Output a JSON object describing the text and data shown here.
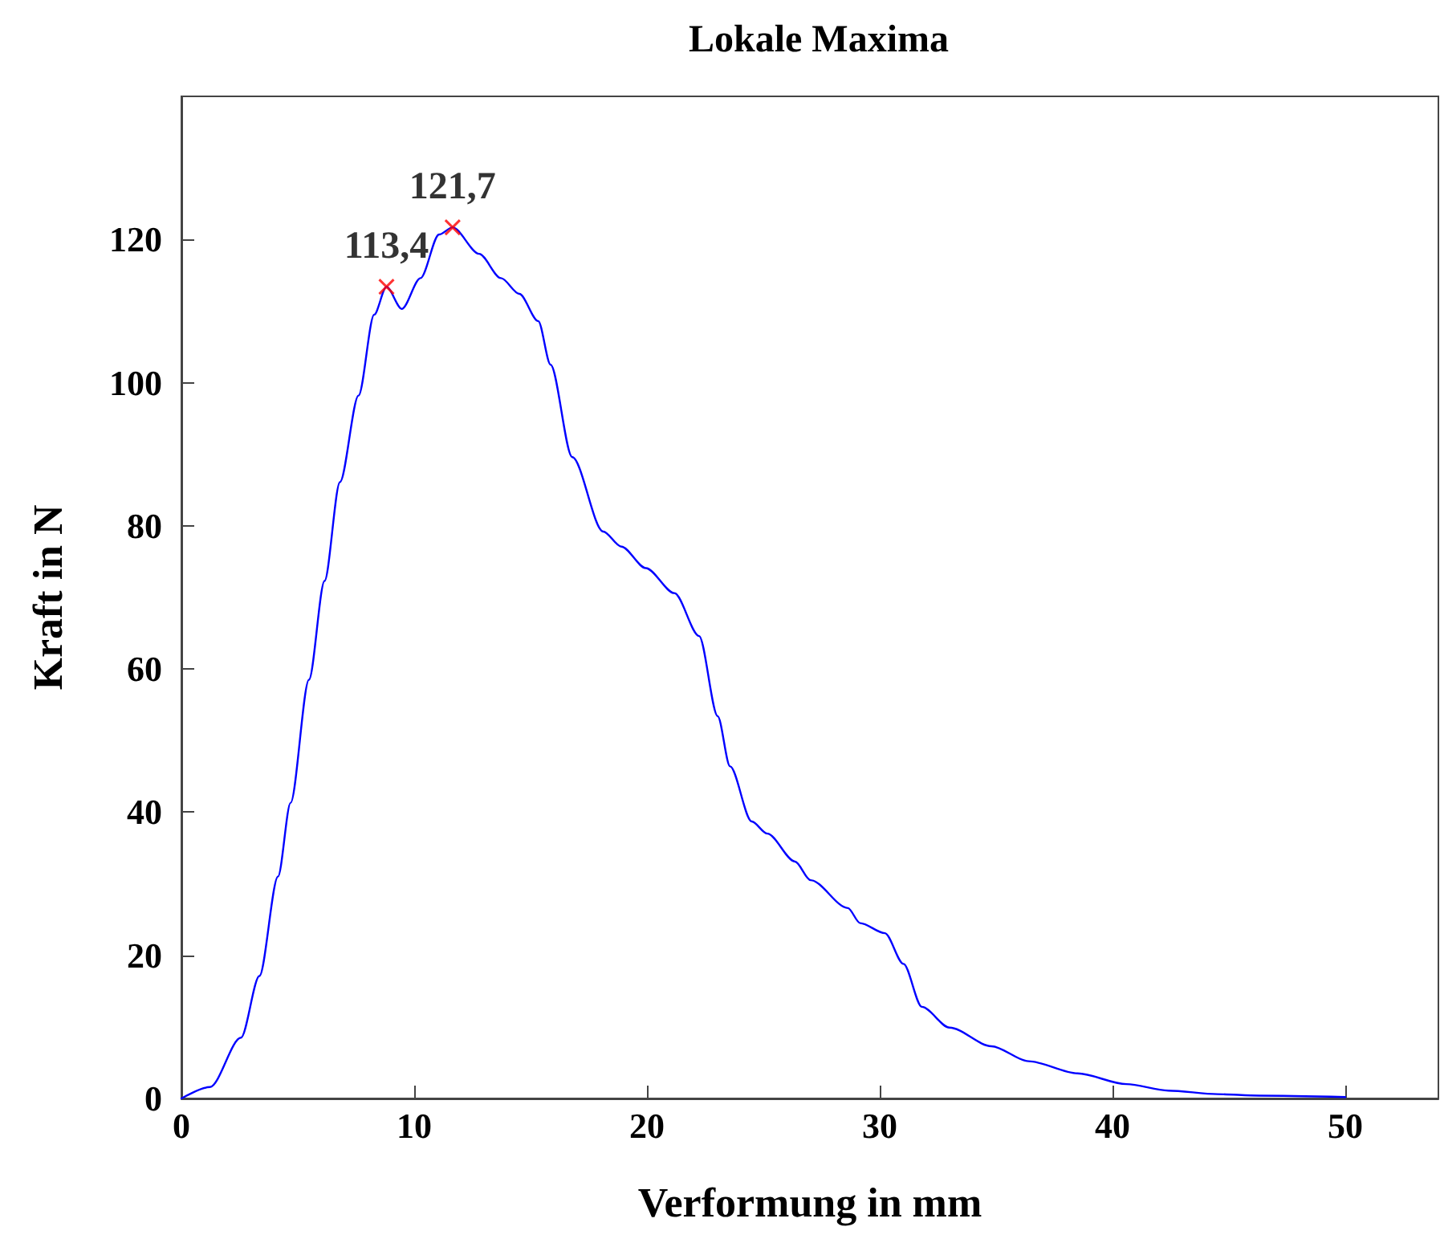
{
  "chart_data": {
    "type": "line",
    "title": "Lokale Maxima",
    "xlabel": "Verformung in mm",
    "ylabel": "Kraft in N",
    "xlim": [
      0,
      54
    ],
    "xticks": [
      0,
      10,
      20,
      30,
      40,
      50
    ],
    "ylim": [
      0,
      140
    ],
    "yticks": [
      0,
      20,
      40,
      60,
      80,
      100,
      120
    ],
    "grid": false,
    "marker": "none",
    "line_style": "solid",
    "series": [
      {
        "color": "#0000ff",
        "x": [
          0,
          1.23,
          2.56,
          3.35,
          4.15,
          4.69,
          5.48,
          6.15,
          6.81,
          7.61,
          8.28,
          8.81,
          9.47,
          10.27,
          11.07,
          11.65,
          12.79,
          13.73,
          14.52,
          15.33,
          15.86,
          16.79,
          18.12,
          18.9,
          19.95,
          21.18,
          22.24,
          23.04,
          23.57,
          24.5,
          25.17,
          26.36,
          27.03,
          28.63,
          29.16,
          30.22,
          31.02,
          31.81,
          33,
          34.8,
          36.4,
          38.5,
          40.6,
          42.4,
          44.5,
          46.3,
          50
        ],
        "values": [
          0,
          1.6,
          8.5,
          17.1,
          31,
          41.3,
          58.5,
          72.3,
          86.1,
          98.2,
          109.5,
          113.4,
          110.3,
          114.6,
          120.7,
          121.7,
          118,
          114.6,
          112.4,
          108.6,
          102.5,
          89.6,
          79.2,
          77.1,
          74.1,
          70.6,
          64.6,
          53.4,
          46.4,
          38.7,
          37,
          33.1,
          30.5,
          26.6,
          24.5,
          23.1,
          18.8,
          12.8,
          9.9,
          7.3,
          5.2,
          3.5,
          2,
          1.1,
          0.6,
          0.4,
          0.2
        ]
      },
      {
        "type": "scatter",
        "color": "#ff0000",
        "marker": "cross",
        "x": [
          8.81,
          11.65
        ],
        "values": [
          113.4,
          121.7
        ],
        "value_labels": [
          "113,4",
          "121,7"
        ]
      }
    ]
  }
}
